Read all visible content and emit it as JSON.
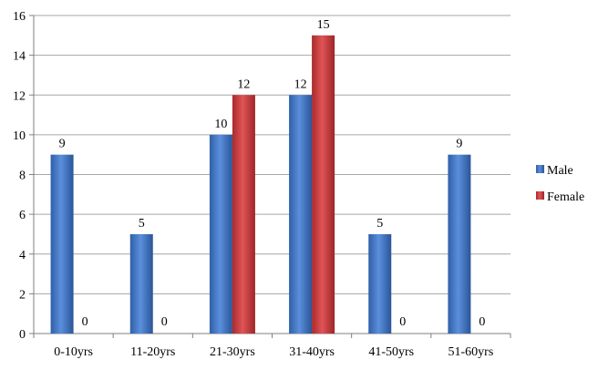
{
  "chart_data": {
    "type": "bar",
    "categories": [
      "0-10yrs",
      "11-20yrs",
      "21-30yrs",
      "31-40yrs",
      "41-50yrs",
      "51-60yrs"
    ],
    "series": [
      {
        "name": "Male",
        "values": [
          9,
          5,
          10,
          12,
          5,
          9
        ],
        "color": "#3f75c6"
      },
      {
        "name": "Female",
        "values": [
          0,
          0,
          12,
          15,
          0,
          0
        ],
        "color": "#c8383a"
      }
    ],
    "ylim": [
      0,
      16
    ],
    "yticks": [
      0,
      2,
      4,
      6,
      8,
      10,
      12,
      14,
      16
    ],
    "grid": true,
    "legend": "right",
    "data_labels": true
  }
}
